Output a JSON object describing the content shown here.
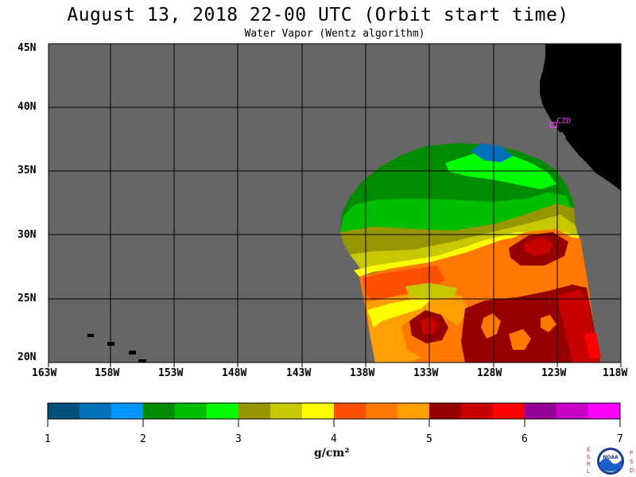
{
  "header": {
    "title": "August 13, 2018  22-00 UTC  (Orbit start time)",
    "subtitle": "Water Vapor (Wentz algorithm)"
  },
  "map": {
    "lat_labels": [
      "45N",
      "40N",
      "35N",
      "30N",
      "25N",
      "20N"
    ],
    "lon_labels": [
      "163W",
      "158W",
      "153W",
      "148W",
      "143W",
      "138W",
      "133W",
      "128W",
      "123W",
      "118W"
    ],
    "station_label": "CZD",
    "colors": {
      "ocean": "#666666",
      "land": "#000000",
      "grid": "#000000",
      "station": "#ff33ff"
    }
  },
  "colorbar": {
    "ticks": [
      "1",
      "2",
      "3",
      "4",
      "5",
      "6",
      "7"
    ],
    "units": "g/cm²",
    "bins": [
      "#00507a",
      "#0070b8",
      "#0096ff",
      "#008c00",
      "#00be00",
      "#00ff00",
      "#969600",
      "#c8c800",
      "#ffff00",
      "#ff5000",
      "#ff7800",
      "#ffa000",
      "#960000",
      "#c80000",
      "#ff0000",
      "#960096",
      "#c800c8",
      "#ff00ff"
    ]
  },
  "logo": {
    "left_letters": "ESRL",
    "right_letters": "PSD",
    "emblem_text": "NOAA"
  }
}
